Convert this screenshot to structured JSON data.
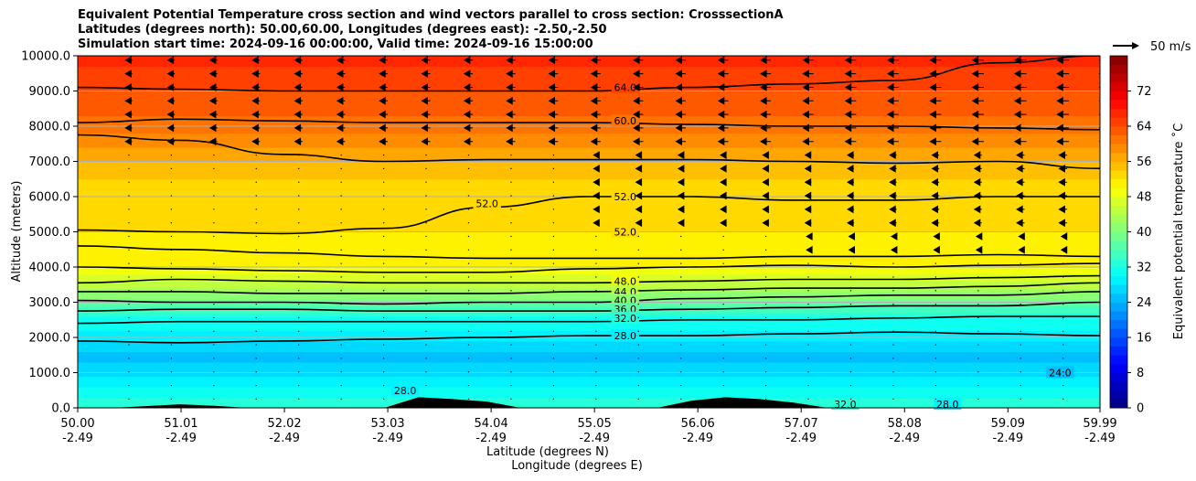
{
  "chart_data": {
    "type": "heatmap",
    "title_lines": [
      "Equivalent Potential Temperature cross section and wind vectors parallel to cross section: CrosssectionA",
      "Latitudes (degrees north): 50.00,60.00, Longitudes (degrees east): -2.50,-2.50",
      "Simulation start time: 2024-09-16 00:00:00, Valid time: 2024-09-16 15:00:00"
    ],
    "xlabel": "Latitude (degrees N)",
    "xlabel2": "Longitude (degrees E)",
    "ylabel": "Altitude (meters)",
    "x_range": [
      50.0,
      59.99
    ],
    "ylim": [
      0,
      10000
    ],
    "x_ticks": [
      {
        "value": 50.0,
        "lat": "50.00",
        "lon": "-2.49"
      },
      {
        "value": 51.01,
        "lat": "51.01",
        "lon": "-2.49"
      },
      {
        "value": 52.02,
        "lat": "52.02",
        "lon": "-2.49"
      },
      {
        "value": 53.03,
        "lat": "53.03",
        "lon": "-2.49"
      },
      {
        "value": 54.04,
        "lat": "54.04",
        "lon": "-2.49"
      },
      {
        "value": 55.05,
        "lat": "55.05",
        "lon": "-2.49"
      },
      {
        "value": 56.06,
        "lat": "56.06",
        "lon": "-2.49"
      },
      {
        "value": 57.07,
        "lat": "57.07",
        "lon": "-2.49"
      },
      {
        "value": 58.08,
        "lat": "58.08",
        "lon": "-2.49"
      },
      {
        "value": 59.09,
        "lat": "59.09",
        "lon": "-2.49"
      },
      {
        "value": 59.99,
        "lat": "59.99",
        "lon": "-2.49"
      }
    ],
    "y_ticks": [
      {
        "value": 0,
        "label": "0.0"
      },
      {
        "value": 1000,
        "label": "1000.0"
      },
      {
        "value": 2000,
        "label": "2000.0"
      },
      {
        "value": 3000,
        "label": "3000.0"
      },
      {
        "value": 4000,
        "label": "4000.0"
      },
      {
        "value": 5000,
        "label": "5000.0"
      },
      {
        "value": 6000,
        "label": "6000.0"
      },
      {
        "value": 7000,
        "label": "7000.0"
      },
      {
        "value": 8000,
        "label": "8000.0"
      },
      {
        "value": 9000,
        "label": "9000.0"
      },
      {
        "value": 10000,
        "label": "10000.0"
      }
    ],
    "grid": "horizontal",
    "colorbar": {
      "label": "Equivalent potential temperature ˚C",
      "range": [
        0,
        80
      ],
      "ticks": [
        0,
        8,
        16,
        24,
        32,
        40,
        48,
        56,
        64,
        72
      ],
      "tick_labels": [
        "0",
        "8",
        "16",
        "24",
        "32",
        "40",
        "48",
        "56",
        "64",
        "72"
      ]
    },
    "quiver_key": {
      "label": "50 m/s",
      "speed": 50
    },
    "theta_e_profile": [
      {
        "alt": 0,
        "theta": 33
      },
      {
        "alt": 500,
        "theta": 31
      },
      {
        "alt": 1000,
        "theta": 27
      },
      {
        "alt": 1500,
        "theta": 25
      },
      {
        "alt": 2000,
        "theta": 29
      },
      {
        "alt": 2500,
        "theta": 31
      },
      {
        "alt": 3000,
        "theta": 38
      },
      {
        "alt": 3500,
        "theta": 45
      },
      {
        "alt": 4000,
        "theta": 50
      },
      {
        "alt": 5000,
        "theta": 52
      },
      {
        "alt": 6000,
        "theta": 52
      },
      {
        "alt": 7000,
        "theta": 56
      },
      {
        "alt": 8000,
        "theta": 61
      },
      {
        "alt": 9000,
        "theta": 64
      },
      {
        "alt": 10000,
        "theta": 67
      }
    ],
    "contours": [
      {
        "level": 28.0,
        "alts": [
          1900,
          1850,
          1900,
          1950,
          2000,
          2050,
          2050,
          2100,
          2150,
          2100,
          2050
        ]
      },
      {
        "level": 32.0,
        "alts": [
          2400,
          2450,
          2450,
          2450,
          2450,
          2450,
          2500,
          2500,
          2550,
          2600,
          2600
        ]
      },
      {
        "level": 36.0,
        "alts": [
          2750,
          2800,
          2800,
          2750,
          2750,
          2750,
          2800,
          2850,
          2900,
          2900,
          3000
        ]
      },
      {
        "level": 40.0,
        "alts": [
          3050,
          3000,
          3000,
          2950,
          3000,
          3000,
          3100,
          3150,
          3200,
          3200,
          3300
        ]
      },
      {
        "level": 44.0,
        "alts": [
          3300,
          3300,
          3250,
          3250,
          3250,
          3300,
          3350,
          3400,
          3400,
          3450,
          3550
        ]
      },
      {
        "level": 48.0,
        "alts": [
          3550,
          3650,
          3600,
          3550,
          3550,
          3550,
          3600,
          3650,
          3650,
          3700,
          3750
        ]
      },
      {
        "level": 52.0,
        "alts": [
          4000,
          3950,
          3900,
          3850,
          3850,
          3950,
          4000,
          4050,
          4000,
          4050,
          4100
        ]
      },
      {
        "level": 52.0,
        "alts": [
          4600,
          4500,
          4400,
          4300,
          4250,
          4250,
          4250,
          4300,
          4300,
          4350,
          4300
        ]
      },
      {
        "level": 52.0,
        "alts": [
          5050,
          5000,
          4950,
          5100,
          5700,
          6000,
          6000,
          5900,
          5900,
          6000,
          6000
        ]
      },
      {
        "level": 56.0,
        "alts": [
          7750,
          7600,
          7200,
          7000,
          7050,
          7050,
          7050,
          7000,
          6950,
          7000,
          6800
        ]
      },
      {
        "level": 60.0,
        "alts": [
          8100,
          8200,
          8150,
          8100,
          8100,
          8100,
          8050,
          8000,
          8000,
          7950,
          7900
        ]
      },
      {
        "level": 64.0,
        "alts": [
          9100,
          9050,
          9000,
          9000,
          9000,
          9000,
          9100,
          9200,
          9300,
          9800,
          10000
        ]
      }
    ],
    "contour_labels": [
      {
        "text": "64.0",
        "lat": 55.35,
        "alt": 9100
      },
      {
        "text": "60.0",
        "lat": 55.35,
        "alt": 8150
      },
      {
        "text": "52.0",
        "lat": 55.35,
        "alt": 6000
      },
      {
        "text": "52.0",
        "lat": 54.0,
        "alt": 5800
      },
      {
        "text": "52.0",
        "lat": 55.35,
        "alt": 5000
      },
      {
        "text": "48.0",
        "lat": 55.35,
        "alt": 3600
      },
      {
        "text": "44.0",
        "lat": 55.35,
        "alt": 3300
      },
      {
        "text": "40.0",
        "lat": 55.35,
        "alt": 3050
      },
      {
        "text": "36.0",
        "lat": 55.35,
        "alt": 2800
      },
      {
        "text": "32.0",
        "lat": 55.35,
        "alt": 2550
      },
      {
        "text": "28.0",
        "lat": 55.35,
        "alt": 2050
      },
      {
        "text": "28.0",
        "lat": 53.2,
        "alt": 500
      },
      {
        "text": "24.0",
        "lat": 59.6,
        "alt": 1000
      },
      {
        "text": "28.0",
        "lat": 58.5,
        "alt": 100
      },
      {
        "text": "32.0",
        "lat": 57.5,
        "alt": 100
      }
    ],
    "terrain_altitude_m": [
      0,
      0,
      50,
      100,
      60,
      0,
      0,
      0,
      0,
      0,
      300,
      250,
      180,
      0,
      0,
      0,
      0,
      0,
      200,
      300,
      250,
      150,
      0,
      0,
      0,
      0,
      0,
      0,
      0,
      0,
      0
    ]
  }
}
